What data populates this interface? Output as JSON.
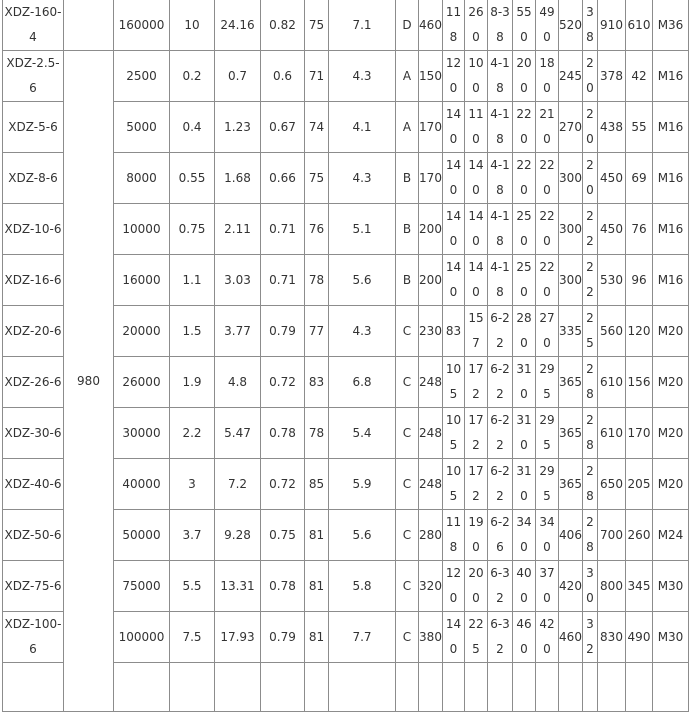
{
  "table": {
    "speed_group": "980",
    "rows": [
      [
        "XDZ-160-4",
        "160000",
        "10",
        "24.16",
        "0.82",
        "75",
        "7.1",
        "D",
        "460",
        "118",
        "260",
        "8-38",
        "550",
        "490",
        "520",
        "38",
        "910",
        "610",
        "M36"
      ],
      [
        "XDZ-2.5-6",
        "2500",
        "0.2",
        "0.7",
        "0.6",
        "71",
        "4.3",
        "A",
        "150",
        "120",
        "100",
        "4-18",
        "200",
        "180",
        "245",
        "20",
        "378",
        "42",
        "M16"
      ],
      [
        "XDZ-5-6",
        "5000",
        "0.4",
        "1.23",
        "0.67",
        "74",
        "4.1",
        "A",
        "170",
        "140",
        "110",
        "4-18",
        "220",
        "210",
        "270",
        "20",
        "438",
        "55",
        "M16"
      ],
      [
        "XDZ-8-6",
        "8000",
        "0.55",
        "1.68",
        "0.66",
        "75",
        "4.3",
        "B",
        "170",
        "140",
        "140",
        "4-18",
        "220",
        "220",
        "300",
        "20",
        "450",
        "69",
        "M16"
      ],
      [
        "XDZ-10-6",
        "10000",
        "0.75",
        "2.11",
        "0.71",
        "76",
        "5.1",
        "B",
        "200",
        "140",
        "140",
        "4-18",
        "250",
        "220",
        "300",
        "22",
        "450",
        "76",
        "M16"
      ],
      [
        "XDZ-16-6",
        "16000",
        "1.1",
        "3.03",
        "0.71",
        "78",
        "5.6",
        "B",
        "200",
        "140",
        "140",
        "4-18",
        "250",
        "220",
        "300",
        "22",
        "530",
        "96",
        "M16"
      ],
      [
        "XDZ-20-6",
        "20000",
        "1.5",
        "3.77",
        "0.79",
        "77",
        "4.3",
        "C",
        "230",
        "83",
        "157",
        "6-22",
        "280",
        "270",
        "335",
        "25",
        "560",
        "120",
        "M20"
      ],
      [
        "XDZ-26-6",
        "26000",
        "1.9",
        "4.8",
        "0.72",
        "83",
        "6.8",
        "C",
        "248",
        "105",
        "172",
        "6-22",
        "310",
        "295",
        "365",
        "28",
        "610",
        "156",
        "M20"
      ],
      [
        "XDZ-30-6",
        "30000",
        "2.2",
        "5.47",
        "0.78",
        "78",
        "5.4",
        "C",
        "248",
        "105",
        "172",
        "6-22",
        "310",
        "295",
        "365",
        "28",
        "610",
        "170",
        "M20"
      ],
      [
        "XDZ-40-6",
        "40000",
        "3",
        "7.2",
        "0.72",
        "85",
        "5.9",
        "C",
        "248",
        "105",
        "172",
        "6-22",
        "310",
        "295",
        "365",
        "28",
        "650",
        "205",
        "M20"
      ],
      [
        "XDZ-50-6",
        "50000",
        "3.7",
        "9.28",
        "0.75",
        "81",
        "5.6",
        "C",
        "280",
        "118",
        "190",
        "6-26",
        "340",
        "340",
        "406",
        "28",
        "700",
        "260",
        "M24"
      ],
      [
        "XDZ-75-6",
        "75000",
        "5.5",
        "13.31",
        "0.78",
        "81",
        "5.8",
        "C",
        "320",
        "120",
        "200",
        "6-32",
        "400",
        "370",
        "420",
        "30",
        "800",
        "345",
        "M30"
      ],
      [
        "XDZ-100-6",
        "100000",
        "7.5",
        "17.93",
        "0.79",
        "81",
        "7.7",
        "C",
        "380",
        "140",
        "225",
        "6-32",
        "460",
        "420",
        "460",
        "32",
        "830",
        "490",
        "M30"
      ]
    ]
  }
}
